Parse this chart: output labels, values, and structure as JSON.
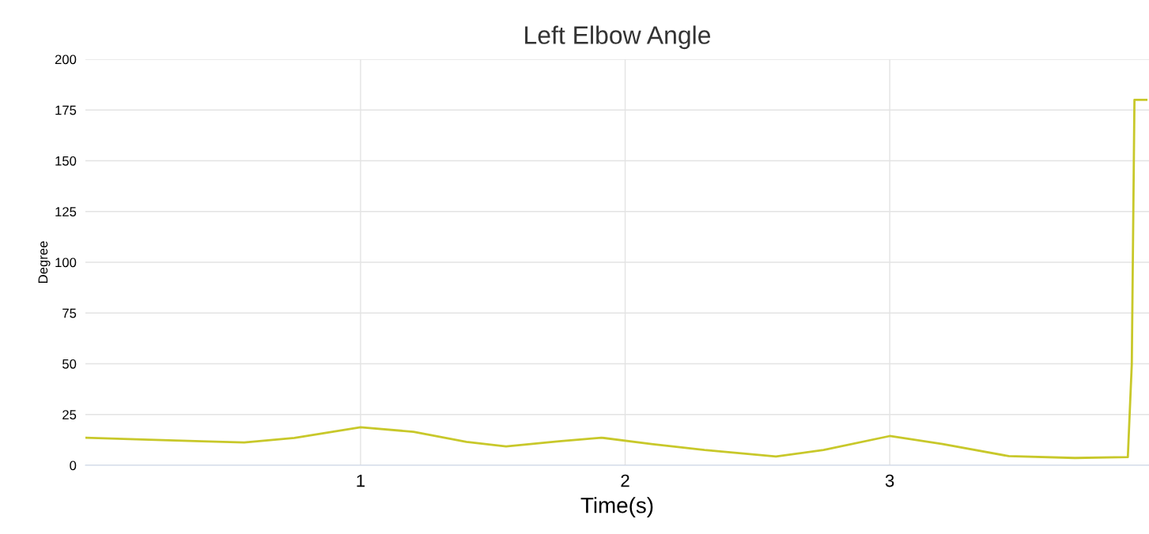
{
  "chart_data": {
    "type": "line",
    "title": "Left Elbow Angle",
    "xlabel": "Time(s)",
    "ylabel": "Degree",
    "x": [
      -0.04,
      0.2,
      0.4,
      0.56,
      0.75,
      1.0,
      1.2,
      1.4,
      1.55,
      1.75,
      1.91,
      2.1,
      2.3,
      2.57,
      2.75,
      3.0,
      3.2,
      3.45,
      3.7,
      3.9,
      3.915,
      3.925,
      3.97
    ],
    "series": [
      {
        "color": "#c8c82a",
        "values": [
          13.6,
          12.6,
          11.8,
          11.2,
          13.5,
          18.7,
          16.5,
          11.5,
          9.3,
          11.8,
          13.6,
          10.5,
          7.5,
          4.3,
          7.5,
          14.4,
          10.5,
          4.5,
          3.6,
          4.0,
          50,
          180,
          180
        ]
      }
    ],
    "xlim": [
      -0.04,
      3.98
    ],
    "xticks": [
      1,
      2,
      3
    ],
    "ylim": [
      0,
      200
    ],
    "yticks": [
      0,
      25,
      50,
      75,
      100,
      125,
      150,
      175,
      200
    ],
    "grid": true,
    "marker": "none",
    "line_style": "solid",
    "legend": false
  }
}
